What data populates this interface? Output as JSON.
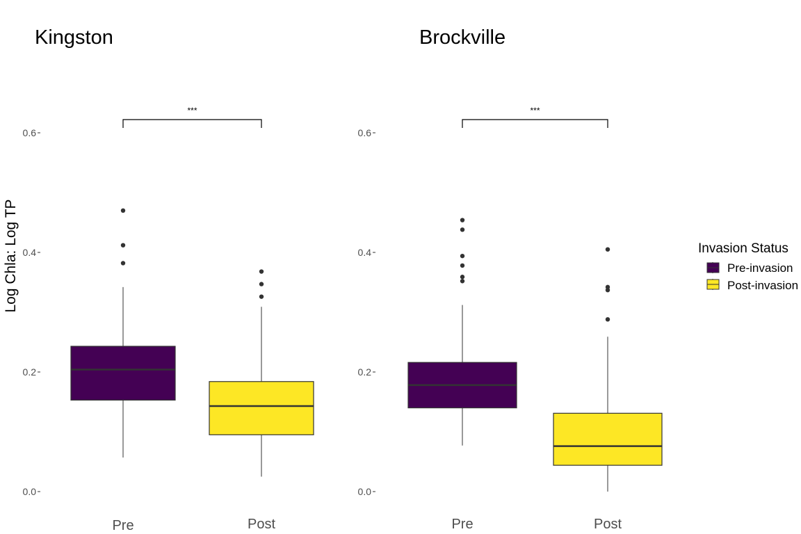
{
  "chart_data": {
    "type": "box",
    "ylabel": "Log Chla: Log TP",
    "ylim": [
      0.0,
      0.6
    ],
    "yticks": [
      0.0,
      0.2,
      0.4,
      0.6
    ],
    "ytick_labels": [
      "0.0",
      "0.2",
      "0.4",
      "0.6"
    ],
    "categories": [
      "Pre",
      "Post"
    ],
    "legend": {
      "title": "Invasion Status",
      "position": "right",
      "entries": [
        {
          "label": "Pre-invasion",
          "color": "#440154"
        },
        {
          "label": "Post-invasion",
          "color": "#FDE725"
        }
      ]
    },
    "panels": [
      {
        "title": "Kingston",
        "significance": "***",
        "boxes": [
          {
            "category": "Pre",
            "group": "Pre-invasion",
            "whisker_low": 0.057,
            "q1": 0.153,
            "median": 0.204,
            "q3": 0.243,
            "whisker_high": 0.342,
            "outliers": [
              0.382,
              0.412,
              0.47
            ]
          },
          {
            "category": "Post",
            "group": "Post-invasion",
            "whisker_low": 0.025,
            "q1": 0.095,
            "median": 0.143,
            "q3": 0.184,
            "whisker_high": 0.309,
            "outliers": [
              0.326,
              0.347,
              0.368
            ]
          }
        ]
      },
      {
        "title": "Brockville",
        "significance": "***",
        "boxes": [
          {
            "category": "Pre",
            "group": "Pre-invasion",
            "whisker_low": 0.077,
            "q1": 0.14,
            "median": 0.178,
            "q3": 0.216,
            "whisker_high": 0.312,
            "outliers": [
              0.352,
              0.359,
              0.378,
              0.394,
              0.438,
              0.454
            ]
          },
          {
            "category": "Post",
            "group": "Post-invasion",
            "whisker_low": 0.0,
            "q1": 0.044,
            "median": 0.076,
            "q3": 0.131,
            "whisker_high": 0.259,
            "outliers": [
              0.288,
              0.337,
              0.342,
              0.405
            ]
          }
        ]
      }
    ]
  }
}
